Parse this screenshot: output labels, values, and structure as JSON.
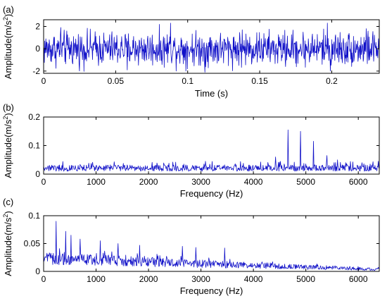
{
  "chart_data": [
    {
      "type": "line",
      "panel_label": "(a)",
      "xlabel": "Time (s)",
      "ylabel": "Amplitude(m/s",
      "ylabel_sup": "2",
      "ylabel_close": ")",
      "xlim": [
        0,
        0.233
      ],
      "ylim": [
        -2.2,
        2.6
      ],
      "xticks": [
        0,
        0.05,
        0.1,
        0.15,
        0.2
      ],
      "xtick_labels": [
        "0",
        "0.05",
        "0.1",
        "0.15",
        "0.2"
      ],
      "yticks": [
        -2,
        0,
        2
      ],
      "ytick_labels": [
        "-2",
        "0",
        "2"
      ],
      "color": "#1010c8",
      "grid": false,
      "series": [
        {
          "description_of_shape": "dense broadband vibration signal fluctuating around 0 with amplitude mostly within ±1.5 and occasional impulses near ±2.3",
          "n_points": 900,
          "noise_amplitude": 0.75,
          "spike_times": [
            0.012,
            0.058,
            0.088,
            0.112,
            0.138,
            0.168,
            0.197,
            0.199,
            0.224
          ],
          "spike_values": [
            1.9,
            -1.9,
            2.3,
            -2.1,
            1.7,
            -1.6,
            2.3,
            -2.0,
            1.8
          ]
        }
      ]
    },
    {
      "type": "line",
      "panel_label": "(b)",
      "xlabel": "Frequency (Hz)",
      "ylabel": "Amplitude(m/s",
      "ylabel_sup": "2",
      "ylabel_close": ")",
      "xlim": [
        0,
        6400
      ],
      "ylim": [
        0,
        0.2
      ],
      "xticks": [
        0,
        1000,
        2000,
        3000,
        4000,
        5000,
        6000
      ],
      "xtick_labels": [
        "0",
        "1000",
        "2000",
        "3000",
        "4000",
        "5000",
        "6000"
      ],
      "yticks": [
        0,
        0.1,
        0.2
      ],
      "ytick_labels": [
        "0",
        "0.1",
        "0.2"
      ],
      "color": "#1010c8",
      "grid": false,
      "series": [
        {
          "description_of_shape": "flat noise floor around 0.02–0.04 with distinct fault peaks between 4600 and 5300 Hz",
          "n_points": 700,
          "baseline": 0.02,
          "noise_amplitude": 0.025,
          "peak_freqs": [
            4660,
            4900,
            5150,
            5400,
            4420,
            5600
          ],
          "peak_values": [
            0.155,
            0.15,
            0.115,
            0.065,
            0.06,
            0.05
          ]
        }
      ]
    },
    {
      "type": "line",
      "panel_label": "(c)",
      "xlabel": "Frequency (Hz)",
      "ylabel": "Amplitude(m/s",
      "ylabel_sup": "2",
      "ylabel_close": ")",
      "xlim": [
        0,
        6400
      ],
      "ylim": [
        0,
        0.1
      ],
      "xticks": [
        0,
        1000,
        2000,
        3000,
        4000,
        5000,
        6000
      ],
      "xtick_labels": [
        "0",
        "1000",
        "2000",
        "3000",
        "4000",
        "5000",
        "6000"
      ],
      "yticks": [
        0,
        0.05,
        0.1
      ],
      "ytick_labels": [
        "0",
        "0.05",
        "0.1"
      ],
      "color": "#1010c8",
      "grid": false,
      "series": [
        {
          "description_of_shape": "spectrum decaying from ~0.05 at low frequency to ~0.005 near 6400 Hz with noisy peaks",
          "n_points": 700,
          "start_level": 0.035,
          "end_level": 0.004,
          "noise_amplitude": 0.025,
          "peak_freqs": [
            240,
            420,
            520,
            700,
            1080,
            1420,
            1830,
            2650,
            2900,
            3450
          ],
          "peak_values": [
            0.09,
            0.072,
            0.065,
            0.058,
            0.055,
            0.05,
            0.047,
            0.045,
            0.043,
            0.042
          ]
        }
      ]
    }
  ]
}
